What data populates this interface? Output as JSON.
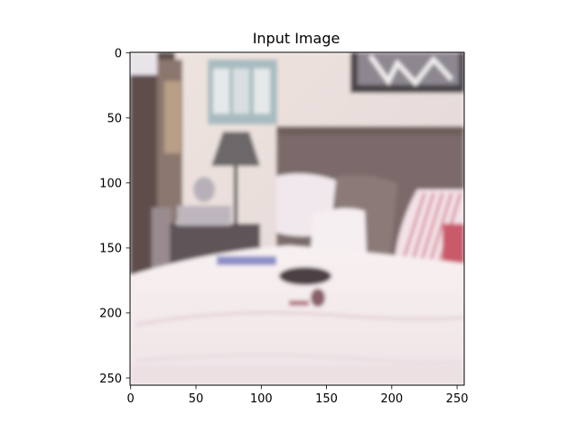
{
  "figure": {
    "title": "Input Image"
  },
  "axes": {
    "x_ticks": [
      "0",
      "50",
      "100",
      "150",
      "200",
      "250"
    ],
    "y_ticks": [
      "0",
      "50",
      "100",
      "150",
      "200",
      "250"
    ],
    "xlim": [
      0,
      256
    ],
    "ylim": [
      256,
      0
    ]
  },
  "image": {
    "description_icon": "bedroom-photo",
    "palette": {
      "wall": "#e8ddd8",
      "bedspread": "#f6eeee",
      "headboard": "#7a6866",
      "pillow_stripe": "#d88a95",
      "dark_left": "#5a4a48",
      "lamp_shade": "#6f6b6c",
      "poster": "#9fb8be"
    }
  }
}
